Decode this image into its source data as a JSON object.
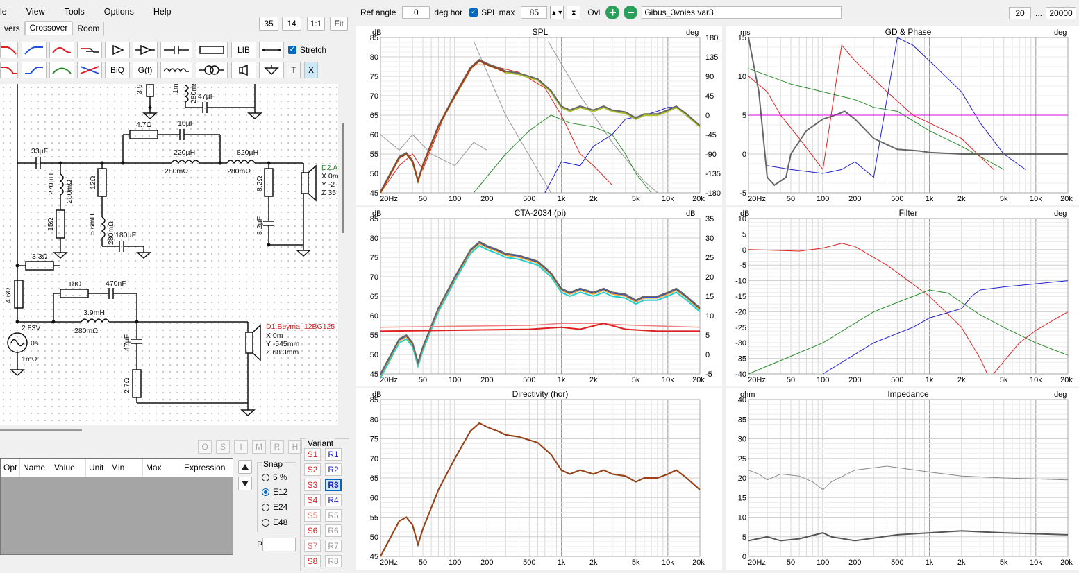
{
  "menu": [
    "le",
    "View",
    "Tools",
    "Options",
    "Help"
  ],
  "tabs": [
    "vers",
    "Crossover",
    "Room"
  ],
  "zoom_buttons": [
    "35",
    "14",
    "1:1",
    "Fit"
  ],
  "toolbar": {
    "lib": "LIB",
    "biq": "BiQ",
    "gf": "G(f)",
    "t": "T",
    "x": "X",
    "stretch": "Stretch"
  },
  "schematic": {
    "labels": [
      "3.9",
      "1m",
      "280mΩ",
      "47µF",
      "4.7Ω",
      "10µF",
      "33µF",
      "220µH",
      "280mΩ",
      "820µH",
      "280mΩ",
      "270µH",
      "280mΩ",
      "12Ω",
      "8.2Ω",
      "8.2µF",
      "15Ω",
      "5.6mH",
      "280mΩ",
      "180µF",
      "3.3Ω",
      "4.6Ω",
      "18Ω",
      "470nF",
      "3.9mH",
      "280mΩ",
      "2.83V",
      "0s",
      "1mΩ",
      "47µF",
      "2.7Ω"
    ],
    "d1": [
      "D1.Beyma_12BG125",
      "X 0m",
      "Y -545mm",
      "Z 68.3mm"
    ],
    "d2": [
      "D2.A",
      "X 0m",
      "Y -2",
      "Z 35"
    ]
  },
  "mode_buttons": [
    "O",
    "S",
    "I",
    "M",
    "R",
    "H"
  ],
  "table_headers": [
    "Opt",
    "Name",
    "Value",
    "Unit",
    "Min",
    "Max",
    "Expression"
  ],
  "snap": {
    "title": "Snap",
    "options": [
      "5 %",
      "E12",
      "E24",
      "E48"
    ],
    "selected": "E12"
  },
  "variant": {
    "title": "Variant",
    "s": [
      "S1",
      "S2",
      "S3",
      "S4",
      "S5",
      "S6",
      "S7",
      "S8"
    ],
    "r": [
      "R1",
      "R2",
      "R3",
      "R4",
      "R5",
      "R6",
      "R7",
      "R8"
    ],
    "selected": "R3"
  },
  "part_label": "Part #",
  "controls": {
    "ref_angle_label": "Ref angle",
    "ref_angle": "0",
    "deg_hor": "deg hor",
    "spl_max_label": "SPL max",
    "spl_max": "85",
    "ovl": "Ovl",
    "project": "Gibus_3voies var3",
    "f_min": "20",
    "dots": "...",
    "f_max": "20000"
  },
  "plots": {
    "spl": {
      "title": "SPL",
      "left_unit": "dB",
      "right_unit": "deg",
      "y_left": [
        "85",
        "80",
        "75",
        "70",
        "65",
        "60",
        "55",
        "50",
        "45"
      ],
      "y_right": [
        "180",
        "135",
        "90",
        "45",
        "0",
        "-45",
        "-90",
        "-135",
        "-180"
      ]
    },
    "gd": {
      "title": "GD & Phase",
      "left_unit": "ms",
      "right_unit": "deg",
      "y_left": [
        "15",
        "10",
        "5",
        "0",
        "-5"
      ]
    },
    "cta": {
      "title": "CTA-2034 (pi)",
      "left_unit": "dB",
      "right_unit": "dB",
      "y_left": [
        "85",
        "80",
        "75",
        "70",
        "65",
        "60",
        "55",
        "50",
        "45"
      ],
      "y_right": [
        "35",
        "30",
        "25",
        "20",
        "15",
        "10",
        "5",
        "0",
        "-5"
      ]
    },
    "filter": {
      "title": "Filter",
      "left_unit": "dB",
      "right_unit": "deg",
      "y_left": [
        "10",
        "5",
        "0",
        "-5",
        "-10",
        "-15",
        "-20",
        "-25",
        "-30",
        "-35",
        "-40"
      ]
    },
    "dir": {
      "title": "Directivity (hor)",
      "left_unit": "dB",
      "y_left": [
        "85",
        "80",
        "75",
        "70",
        "65",
        "60",
        "55",
        "50",
        "45"
      ]
    },
    "imp": {
      "title": "Impedance",
      "left_unit": "ohm",
      "right_unit": "deg",
      "y_left": [
        "40",
        "35",
        "30",
        "25",
        "20",
        "15",
        "10",
        "5",
        "0"
      ]
    },
    "freq_ticks": [
      "20Hz",
      "50",
      "100",
      "200",
      "500",
      "1k",
      "2k",
      "5k",
      "10k",
      "20k"
    ]
  },
  "colors": {
    "red": "#e02020",
    "green": "#2a8a2a",
    "blue": "#2020d0",
    "gray": "#555555",
    "brown": "#a0401a",
    "magenta": "#e000e0",
    "cyan": "#20d0d0",
    "accent": "#0067c0"
  }
}
